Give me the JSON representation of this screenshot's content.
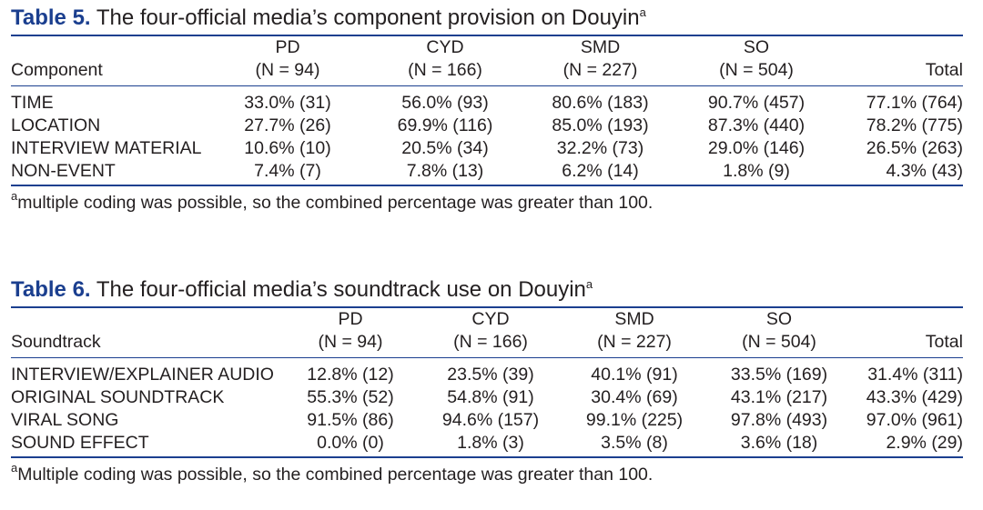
{
  "table5": {
    "label": "Table 5.",
    "title": "The four-official media’s component provision on Douyin",
    "title_sup": "a",
    "stub_header": "Component",
    "columns": [
      {
        "name": "PD",
        "n": "(N = 94)"
      },
      {
        "name": "CYD",
        "n": "(N = 166)"
      },
      {
        "name": "SMD",
        "n": "(N = 227)"
      },
      {
        "name": "SO",
        "n": "(N = 504)"
      }
    ],
    "total_header": "Total",
    "rows": [
      {
        "label": "TIME",
        "cells": [
          "33.0% (31)",
          "56.0% (93)",
          "80.6% (183)",
          "90.7% (457)"
        ],
        "total": "77.1% (764)"
      },
      {
        "label": "LOCATION",
        "cells": [
          "27.7% (26)",
          "69.9% (116)",
          "85.0% (193)",
          "87.3% (440)"
        ],
        "total": "78.2% (775)"
      },
      {
        "label": "INTERVIEW MATERIAL",
        "cells": [
          "10.6% (10)",
          "20.5% (34)",
          "32.2% (73)",
          "29.0% (146)"
        ],
        "total": "26.5% (263)"
      },
      {
        "label": "NON-EVENT",
        "cells": [
          "7.4% (7)",
          "7.8% (13)",
          "6.2% (14)",
          "1.8% (9)"
        ],
        "total": "4.3% (43)"
      }
    ],
    "note_sup": "a",
    "note": "multiple coding was possible, so the combined percentage was greater than 100."
  },
  "table6": {
    "label": "Table 6.",
    "title": "The four-official media’s soundtrack use on Douyin",
    "title_sup": "a",
    "stub_header": "Soundtrack",
    "columns": [
      {
        "name": "PD",
        "n": "(N = 94)"
      },
      {
        "name": "CYD",
        "n": "(N = 166)"
      },
      {
        "name": "SMD",
        "n": "(N = 227)"
      },
      {
        "name": "SO",
        "n": "(N = 504)"
      }
    ],
    "total_header": "Total",
    "rows": [
      {
        "label": "INTERVIEW/EXPLAINER AUDIO",
        "cells": [
          "12.8% (12)",
          "23.5% (39)",
          "40.1% (91)",
          "33.5% (169)"
        ],
        "total": "31.4% (311)"
      },
      {
        "label": "ORIGINAL SOUNDTRACK",
        "cells": [
          "55.3% (52)",
          "54.8% (91)",
          "30.4% (69)",
          "43.1% (217)"
        ],
        "total": "43.3% (429)"
      },
      {
        "label": "VIRAL SONG",
        "cells": [
          "91.5% (86)",
          "94.6% (157)",
          "99.1% (225)",
          "97.8% (493)"
        ],
        "total": "97.0% (961)"
      },
      {
        "label": "SOUND EFFECT",
        "cells": [
          "0.0% (0)",
          "1.8% (3)",
          "3.5% (8)",
          "3.6% (18)"
        ],
        "total": "2.9% (29)"
      }
    ],
    "note_sup": "a",
    "note": "Multiple coding was possible, so the combined percentage was greater than 100."
  }
}
